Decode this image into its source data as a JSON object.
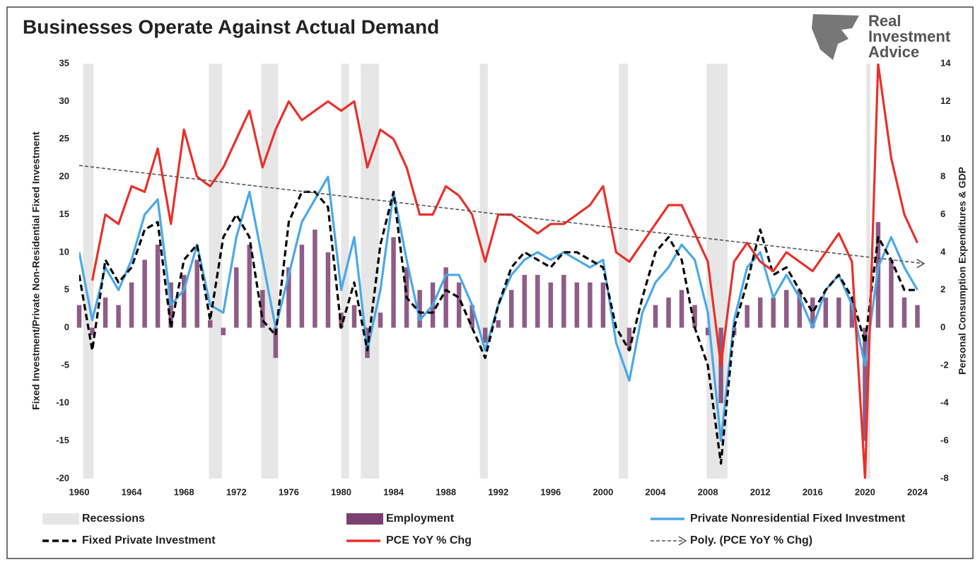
{
  "chart_data": {
    "type": "line",
    "title": "Businesses Operate Against Actual Demand",
    "y_label": "Fixed Investment/Private Non-Residential Fixed Investment",
    "y2_label": "Personal Consumption Expenditures & GDP",
    "x": [
      1960,
      1961,
      1962,
      1963,
      1964,
      1965,
      1966,
      1967,
      1968,
      1969,
      1970,
      1971,
      1972,
      1973,
      1974,
      1975,
      1976,
      1977,
      1978,
      1979,
      1980,
      1981,
      1982,
      1983,
      1984,
      1985,
      1986,
      1987,
      1988,
      1989,
      1990,
      1991,
      1992,
      1993,
      1994,
      1995,
      1996,
      1997,
      1998,
      1999,
      2000,
      2001,
      2002,
      2003,
      2004,
      2005,
      2006,
      2007,
      2008,
      2009,
      2010,
      2011,
      2012,
      2013,
      2014,
      2015,
      2016,
      2017,
      2018,
      2019,
      2020,
      2021,
      2022,
      2023,
      2024
    ],
    "xlim": [
      1960,
      2025
    ],
    "xticks": [
      1960,
      1964,
      1968,
      1972,
      1976,
      1980,
      1984,
      1988,
      1992,
      1996,
      2000,
      2004,
      2008,
      2012,
      2016,
      2020,
      2024
    ],
    "ylim": [
      -20,
      35
    ],
    "yticks": [
      -20,
      -15,
      -10,
      -5,
      0,
      5,
      10,
      15,
      20,
      25,
      30,
      35
    ],
    "y2lim": [
      -8,
      14
    ],
    "y2ticks": [
      -8,
      -6,
      -4,
      -2,
      0,
      2,
      4,
      6,
      8,
      10,
      12,
      14
    ],
    "recessions": {
      "name": "Recessions",
      "color": "#e6e6e6",
      "periods": [
        [
          1960.3,
          1961.1
        ],
        [
          1969.9,
          1970.9
        ],
        [
          1973.9,
          1975.2
        ],
        [
          1980.0,
          1980.6
        ],
        [
          1981.5,
          1982.9
        ],
        [
          1990.6,
          1991.2
        ],
        [
          2001.2,
          2001.9
        ],
        [
          2007.9,
          2009.5
        ],
        [
          2020.1,
          2020.4
        ]
      ]
    },
    "series": [
      {
        "name": "Employment",
        "type": "bar",
        "color": "#7b3f72",
        "values": [
          3,
          -1,
          4,
          3,
          6,
          9,
          11,
          6,
          7,
          9,
          1,
          -1,
          8,
          11,
          5,
          -4,
          8,
          11,
          13,
          10,
          2,
          3,
          -4,
          2,
          12,
          8,
          5,
          6,
          8,
          6,
          3,
          -2,
          1,
          5,
          7,
          7,
          6,
          7,
          6,
          6,
          6,
          0,
          -3,
          0,
          3,
          4,
          5,
          3,
          -1,
          -10,
          -1,
          3,
          4,
          4,
          5,
          5,
          4,
          4,
          4,
          4,
          -15,
          14,
          9,
          4,
          3
        ]
      },
      {
        "name": "Private Nonresidential Fixed Investment",
        "color": "#4aa8e8",
        "values": [
          10,
          1,
          8,
          5,
          9,
          15,
          17,
          3,
          5,
          11,
          3,
          2,
          12,
          18,
          9,
          0,
          7,
          14,
          17,
          20,
          5,
          12,
          -3,
          5,
          18,
          9,
          1,
          3,
          7,
          7,
          3,
          -3,
          3,
          7,
          9,
          10,
          9,
          10,
          9,
          8,
          9,
          -2,
          -7,
          2,
          6,
          8,
          11,
          9,
          2,
          -15,
          1,
          8,
          10,
          4,
          7,
          4,
          0,
          5,
          7,
          3,
          -5,
          8,
          12,
          8,
          5
        ]
      },
      {
        "name": "Fixed Private Investment",
        "color": "#000000",
        "dash": true,
        "values": [
          7,
          -3,
          9,
          6,
          8,
          13,
          14,
          0,
          9,
          11,
          1,
          12,
          15,
          12,
          1,
          -1,
          14,
          18,
          18,
          16,
          0,
          6,
          -3,
          11,
          18,
          4,
          2,
          2,
          5,
          4,
          0,
          -4,
          3,
          8,
          10,
          9,
          8,
          10,
          10,
          9,
          8,
          0,
          -3,
          4,
          10,
          12,
          9,
          0,
          -5,
          -18,
          0,
          6,
          13,
          7,
          8,
          5,
          2,
          5,
          7,
          4,
          -2,
          12,
          9,
          5,
          5
        ]
      },
      {
        "name": "PCE YoY % Chg",
        "color": "#e8302a",
        "axis": "y2",
        "values": [
          null,
          2.5,
          6,
          5.5,
          7.5,
          7.2,
          9.5,
          5.5,
          10.5,
          8,
          7.5,
          8.5,
          10,
          11.5,
          8.5,
          10.5,
          12,
          11,
          11.5,
          12,
          11.5,
          12,
          8.5,
          10.5,
          10,
          8.5,
          6,
          6,
          7.5,
          7,
          6,
          3.5,
          6,
          6,
          5.5,
          5,
          5.5,
          5.5,
          6,
          6.5,
          7.5,
          4,
          3.5,
          4.5,
          5.5,
          6.5,
          6.5,
          5,
          3.5,
          -2,
          3.5,
          4.5,
          3.5,
          3,
          4,
          3.5,
          3,
          4,
          5,
          3.5,
          -8,
          14,
          9,
          6,
          4.5
        ]
      },
      {
        "name": "Poly. (PCE YoY % Chg)",
        "color": "#555555",
        "axis": "y2",
        "dash": true,
        "trend": true,
        "x": [
          1960,
          2024.5
        ],
        "values": [
          8.6,
          3.4
        ]
      }
    ]
  },
  "logo": {
    "line1": "Real",
    "line2": "Investment",
    "line3": "Advice"
  }
}
